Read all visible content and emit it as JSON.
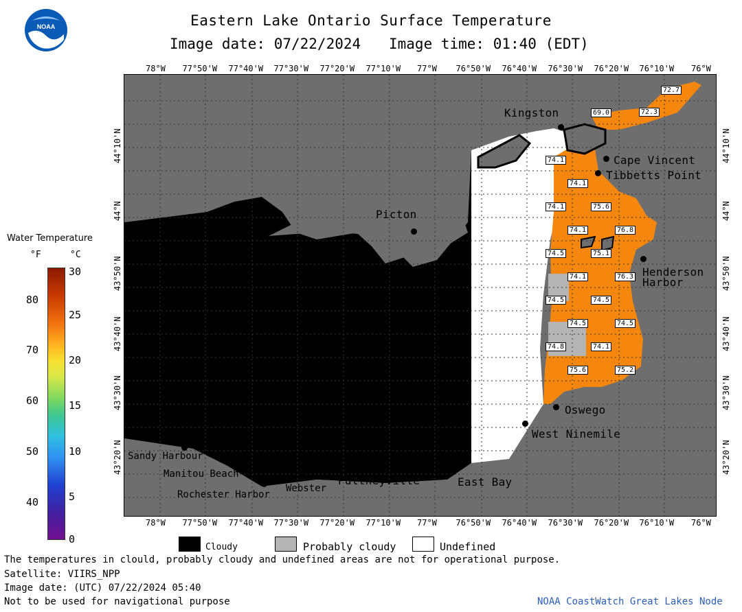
{
  "header": {
    "title": "Eastern Lake Ontario Surface Temperature",
    "date_label": "Image date: 07/22/2024",
    "time_label": "Image time: 01:40 (EDT)"
  },
  "logo": {
    "text": "NOAA"
  },
  "colorbar": {
    "title": "Water Temperature",
    "unit_f": "°F",
    "unit_c": "°C",
    "f_ticks": [
      "80",
      "70",
      "60",
      "50",
      "40"
    ],
    "c_ticks": [
      "30",
      "25",
      "20",
      "15",
      "10",
      "5",
      "0"
    ]
  },
  "map": {
    "lon_labels": [
      "78°W",
      "77°50'W",
      "77°40'W",
      "77°30'W",
      "77°20'W",
      "77°10'W",
      "77°W",
      "76°50'W",
      "76°40'W",
      "76°30'W",
      "76°20'W",
      "76°10'W",
      "76°W"
    ],
    "lon_top_last": "76°W",
    "lat_labels": [
      "44°10'N",
      "44°N",
      "43°50'N",
      "43°40'N",
      "43°30'N",
      "43°20'N"
    ],
    "places": {
      "kingston": "Kingston",
      "cape_vincent": "Cape Vincent",
      "tibbetts_point": "Tibbetts Point",
      "picton": "Picton",
      "henderson_harbor_1": "Henderson",
      "henderson_harbor_2": "Harbor",
      "oswego": "Oswego",
      "west_ninemile": "West Ninemile",
      "east_bay": "East Bay",
      "pultneyville": "Pultneyville",
      "webster": "Webster",
      "rochester_harbor": "Rochester Harbor",
      "manitou_beach": "Manitou Beach",
      "sandy_harbour": "Sandy Harbour"
    },
    "temps": [
      "72.7",
      "69.0",
      "72.3",
      "74.1",
      "74.1",
      "74.1",
      "75.6",
      "74.1",
      "76.8",
      "74.5",
      "75.1",
      "74.1",
      "76.3",
      "74.5",
      "74.5",
      "74.5",
      "74.5",
      "74.8",
      "74.1",
      "75.6",
      "75.2"
    ]
  },
  "legend": {
    "cloudy": "Cloudy",
    "probably_cloudy": "Probably cloudy",
    "undefined": "Undefined"
  },
  "footer": {
    "note": "The temperatures in clould, probably cloudy and undefined areas are not for operational purpose.",
    "satellite": "Satellite: VIIRS_NPP",
    "utc_date": "Image date: (UTC) 07/22/2024  05:40",
    "nav_warning": "Not to be used for navigational purpose",
    "credit": "NOAA CoastWatch Great Lakes Node"
  },
  "colors": {
    "land": "#6e6e6e",
    "cloudy": "#000000",
    "probably_cloudy": "#b4b4b4",
    "undefined": "#ffffff",
    "water_warm": "#f5870f",
    "credit_blue": "#2b5fb8"
  }
}
